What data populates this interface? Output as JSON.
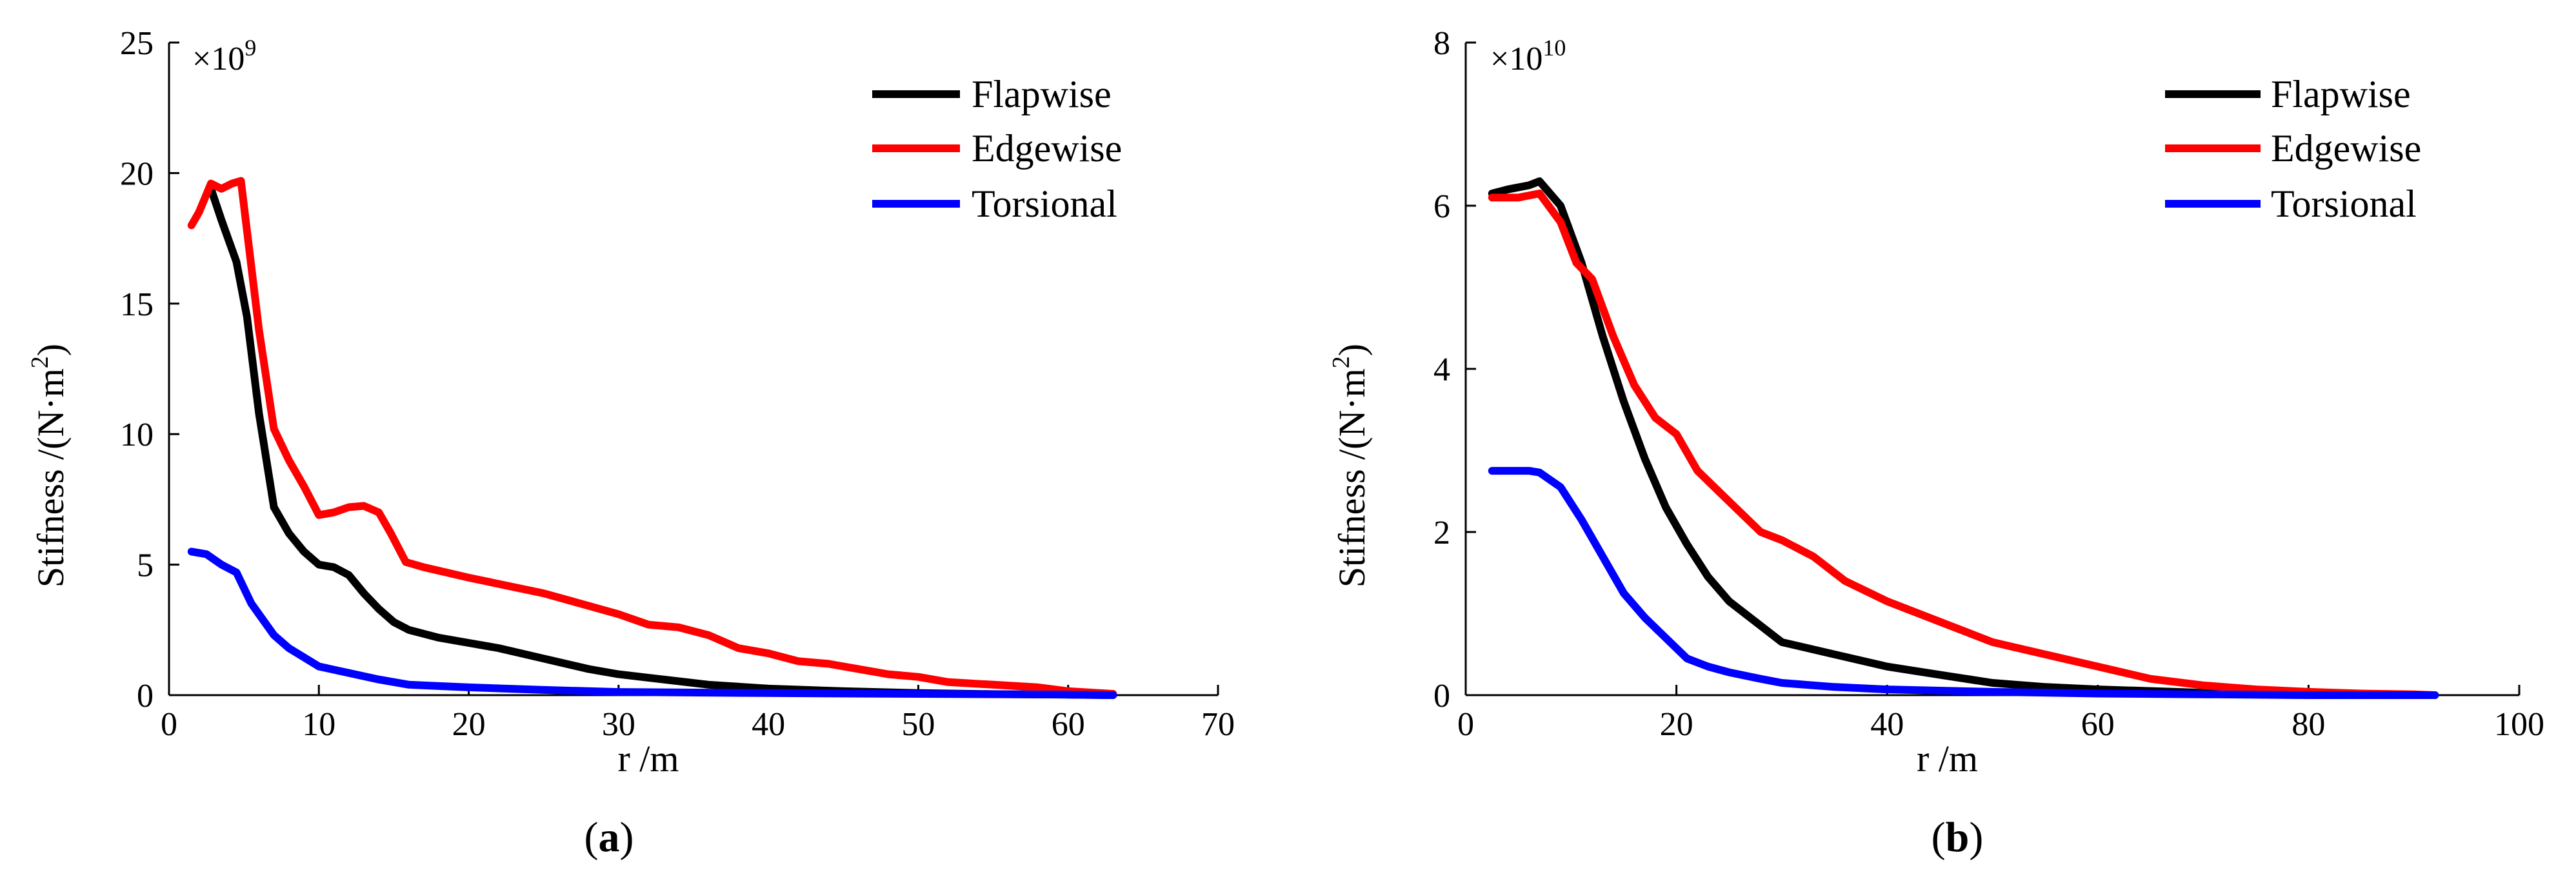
{
  "chart_data": [
    {
      "type": "line",
      "panel": "(a)",
      "panel_letter": "a",
      "xlabel": "r /m",
      "ylabel": "Stifness /(N·m²)",
      "ylabel_main": "Stifness /(N·m",
      "ylabel_sup": "2",
      "ylabel_end": ")",
      "multiplier_base": "×10",
      "multiplier_exp": "9",
      "xlim": [
        0,
        70
      ],
      "ylim": [
        0,
        25
      ],
      "xticks": [
        0,
        10,
        20,
        30,
        40,
        50,
        60,
        70
      ],
      "yticks": [
        0,
        5,
        10,
        15,
        20,
        25
      ],
      "legend_position": "top-right",
      "series": [
        {
          "name": "Flapwise",
          "color": "#000000",
          "x": [
            2.8,
            3.5,
            4.5,
            5.2,
            6,
            7,
            8,
            9,
            10,
            11,
            12,
            13,
            14,
            15,
            16,
            18,
            20,
            22,
            25,
            28,
            30,
            33,
            36,
            40,
            45,
            50,
            55,
            60,
            63
          ],
          "y": [
            19.4,
            18.2,
            16.6,
            14.5,
            10.8,
            7.2,
            6.2,
            5.5,
            5.0,
            4.9,
            4.6,
            3.9,
            3.3,
            2.8,
            2.5,
            2.2,
            2.0,
            1.8,
            1.4,
            1.0,
            0.8,
            0.6,
            0.4,
            0.25,
            0.15,
            0.08,
            0.04,
            0.02,
            0.0
          ]
        },
        {
          "name": "Edgewise",
          "color": "#ff0000",
          "x": [
            1.5,
            2,
            2.8,
            3.5,
            4.2,
            4.8,
            6,
            7,
            8,
            9,
            10,
            11,
            12,
            13,
            14,
            14.8,
            15.8,
            17,
            20,
            25,
            30,
            32,
            34,
            36,
            38,
            40,
            42,
            44,
            46,
            48,
            50,
            52,
            55,
            58,
            60,
            63
          ],
          "y": [
            18.0,
            18.5,
            19.6,
            19.4,
            19.6,
            19.7,
            14.0,
            10.2,
            9.0,
            8.0,
            6.9,
            7.0,
            7.2,
            7.25,
            7.0,
            6.2,
            5.1,
            4.9,
            4.5,
            3.9,
            3.1,
            2.7,
            2.6,
            2.3,
            1.8,
            1.6,
            1.3,
            1.2,
            1.0,
            0.8,
            0.7,
            0.5,
            0.4,
            0.3,
            0.15,
            0.05
          ]
        },
        {
          "name": "Torsional",
          "color": "#0000ff",
          "x": [
            1.5,
            2.5,
            3.5,
            4.5,
            5.5,
            7,
            8,
            10,
            12,
            14,
            16,
            20,
            25,
            30,
            40,
            50,
            60,
            63
          ],
          "y": [
            5.5,
            5.4,
            5.0,
            4.7,
            3.5,
            2.3,
            1.8,
            1.1,
            0.85,
            0.6,
            0.4,
            0.3,
            0.2,
            0.12,
            0.08,
            0.05,
            0.02,
            0.0
          ]
        }
      ]
    },
    {
      "type": "line",
      "panel": "(b)",
      "panel_letter": "b",
      "xlabel": "r /m",
      "ylabel": "Stifness /(N·m²)",
      "ylabel_main": "Stifness /(N·m",
      "ylabel_sup": "2",
      "ylabel_end": ")",
      "multiplier_base": "×10",
      "multiplier_exp": "10",
      "xlim": [
        0,
        100
      ],
      "ylim": [
        0,
        8
      ],
      "xticks": [
        0,
        20,
        40,
        60,
        80,
        100
      ],
      "yticks": [
        0,
        2,
        4,
        6,
        8
      ],
      "legend_position": "top-right",
      "series": [
        {
          "name": "Flapwise",
          "color": "#000000",
          "x": [
            2.5,
            4,
            6,
            7,
            9,
            11,
            13,
            15,
            17,
            19,
            21,
            23,
            25,
            27,
            30,
            35,
            40,
            45,
            50,
            55,
            60,
            70,
            80,
            92
          ],
          "y": [
            6.15,
            6.2,
            6.25,
            6.3,
            6.0,
            5.3,
            4.4,
            3.6,
            2.9,
            2.3,
            1.85,
            1.45,
            1.15,
            0.95,
            0.65,
            0.5,
            0.35,
            0.25,
            0.15,
            0.1,
            0.07,
            0.03,
            0.01,
            0.0
          ]
        },
        {
          "name": "Edgewise",
          "color": "#ff0000",
          "x": [
            2.5,
            5,
            7,
            9,
            10.5,
            12,
            14,
            16,
            18,
            20,
            22,
            24,
            26,
            28,
            30,
            33,
            36,
            40,
            45,
            50,
            55,
            60,
            65,
            70,
            75,
            80,
            85,
            90,
            92
          ],
          "y": [
            6.1,
            6.1,
            6.15,
            5.8,
            5.3,
            5.1,
            4.4,
            3.8,
            3.4,
            3.2,
            2.75,
            2.5,
            2.25,
            2.0,
            1.9,
            1.7,
            1.4,
            1.15,
            0.9,
            0.65,
            0.5,
            0.35,
            0.2,
            0.12,
            0.07,
            0.04,
            0.02,
            0.01,
            0.0
          ]
        },
        {
          "name": "Torsional",
          "color": "#0000ff",
          "x": [
            2.5,
            4,
            6,
            7,
            9,
            11,
            13,
            15,
            17,
            19,
            21,
            23,
            25,
            28,
            30,
            35,
            40,
            50,
            60,
            70,
            80,
            92
          ],
          "y": [
            2.75,
            2.75,
            2.75,
            2.73,
            2.55,
            2.15,
            1.7,
            1.25,
            0.95,
            0.7,
            0.45,
            0.35,
            0.28,
            0.2,
            0.15,
            0.1,
            0.07,
            0.04,
            0.02,
            0.01,
            0.0,
            0.0
          ]
        }
      ]
    }
  ]
}
